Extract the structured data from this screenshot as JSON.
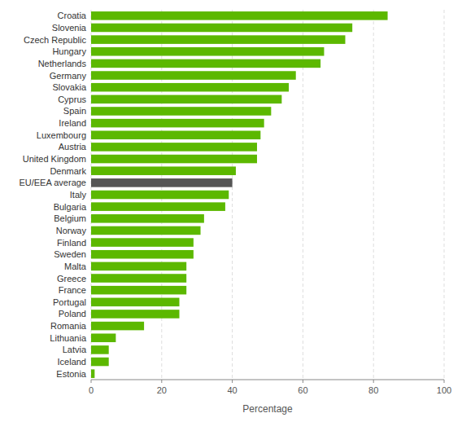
{
  "chart_data": {
    "type": "bar",
    "orientation": "horizontal",
    "x_label": "Percentage",
    "categories": [
      "Croatia",
      "Slovenia",
      "Czech Republic",
      "Hungary",
      "Netherlands",
      "Germany",
      "Slovakia",
      "Cyprus",
      "Spain",
      "Ireland",
      "Luxembourg",
      "Austria",
      "United Kingdom",
      "Denmark",
      "EU/EEA average",
      "Italy",
      "Bulgaria",
      "Belgium",
      "Norway",
      "Finland",
      "Sweden",
      "Malta",
      "Greece",
      "France",
      "Portugal",
      "Poland",
      "Romania",
      "Lithuania",
      "Latvia",
      "Iceland",
      "Estonia"
    ],
    "values": [
      84,
      74,
      72,
      66,
      65,
      58,
      56,
      54,
      51,
      49,
      48,
      47,
      47,
      41,
      40,
      39,
      38,
      32,
      31,
      29,
      29,
      27,
      27,
      27,
      25,
      25,
      15,
      7,
      5,
      5,
      1
    ],
    "colors": [
      "#5cb800",
      "#5cb800",
      "#5cb800",
      "#5cb800",
      "#5cb800",
      "#5cb800",
      "#5cb800",
      "#5cb800",
      "#5cb800",
      "#5cb800",
      "#5cb800",
      "#5cb800",
      "#5cb800",
      "#5cb800",
      "#555555",
      "#5cb800",
      "#5cb800",
      "#5cb800",
      "#5cb800",
      "#5cb800",
      "#5cb800",
      "#5cb800",
      "#5cb800",
      "#5cb800",
      "#5cb800",
      "#5cb800",
      "#5cb800",
      "#5cb800",
      "#5cb800",
      "#5cb800",
      "#5cb800"
    ],
    "xlim": [
      0,
      100
    ],
    "xticks": [
      0,
      20,
      40,
      60,
      80,
      100
    ],
    "grid": true
  }
}
